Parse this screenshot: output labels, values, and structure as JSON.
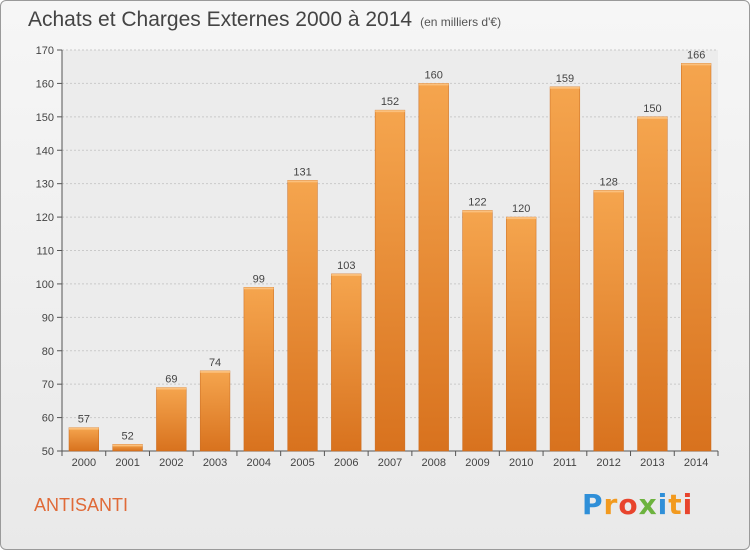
{
  "header": {
    "title": "Achats et Charges Externes 2000 à 2014",
    "subtitle": "(en milliers d'€)"
  },
  "footer": {
    "commune": "ANTISANTI",
    "logo": [
      "P",
      "r",
      "o",
      "x",
      "i",
      "t",
      "i"
    ],
    "logo_colors": [
      "#2f8fd8",
      "#f29a1f",
      "#e8442d",
      "#6db33f",
      "#2f8fd8",
      "#f29a1f",
      "#e8442d"
    ]
  },
  "chart_data": {
    "type": "bar",
    "title": "Achats et Charges Externes 2000 à 2014",
    "subtitle": "(en milliers d'€)",
    "categories": [
      "2000",
      "2001",
      "2002",
      "2003",
      "2004",
      "2005",
      "2006",
      "2007",
      "2008",
      "2009",
      "2010",
      "2011",
      "2012",
      "2013",
      "2014"
    ],
    "values": [
      57,
      52,
      69,
      74,
      99,
      131,
      103,
      152,
      160,
      122,
      120,
      159,
      128,
      150,
      166
    ],
    "ylim": [
      50,
      170
    ],
    "yticks": [
      50,
      60,
      70,
      80,
      90,
      100,
      110,
      120,
      130,
      140,
      150,
      160,
      170
    ],
    "grid": "horizontal",
    "bar_color_top": "#f5a54e",
    "bar_color_bottom": "#d8721e"
  }
}
